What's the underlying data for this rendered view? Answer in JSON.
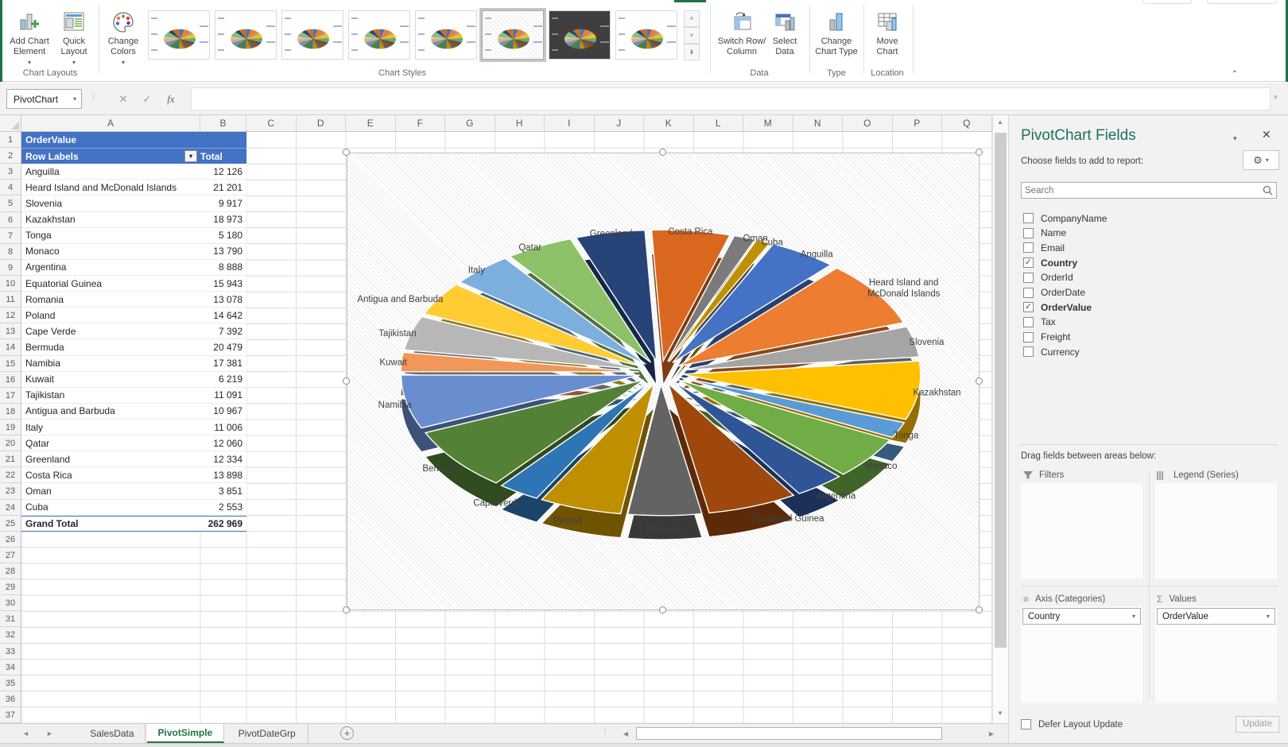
{
  "icons": {
    "cancel": "✕",
    "enter": "✓",
    "fx": "fx",
    "gear": "⚙",
    "dropdown": "▾",
    "up": "˄",
    "down": "˅",
    "more": "⇟",
    "left": "◄",
    "right": "►",
    "plus": "+",
    "sigma": "Σ",
    "lines": "≡",
    "bars": "⫿⫿⫿",
    "chevron-up": "⌃",
    "ellipsis": "⋮"
  },
  "ribbon": {
    "buttons": {
      "add_chart_element": "Add Chart\nElement",
      "quick_layout": "Quick\nLayout",
      "change_colors": "Change\nColors",
      "switch_row_column": "Switch Row/\nColumn",
      "select_data": "Select\nData",
      "change_chart_type": "Change\nChart Type",
      "move_chart": "Move\nChart"
    },
    "group_labels": {
      "chart_layouts": "Chart Layouts",
      "chart_styles": "Chart Styles",
      "data": "Data",
      "type": "Type",
      "location": "Location"
    },
    "gallery": {
      "selected_index": 5,
      "dark_index": 6,
      "count": 8
    }
  },
  "formula_bar": {
    "name_box": "PivotChart",
    "formula": ""
  },
  "grid": {
    "columns": [
      "A",
      "B",
      "C",
      "D",
      "E",
      "F",
      "G",
      "H",
      "I",
      "J",
      "K",
      "L",
      "M",
      "N",
      "O",
      "P",
      "Q"
    ],
    "row_count": 37,
    "pivot": {
      "title": "OrderValue",
      "row_labels_header": "Row Labels",
      "total_header": "Total",
      "rows": [
        {
          "country": "Anguilla",
          "value": "12 126"
        },
        {
          "country": "Heard Island and McDonald Islands",
          "value": "21 201"
        },
        {
          "country": "Slovenia",
          "value": "9 917"
        },
        {
          "country": "Kazakhstan",
          "value": "18 973"
        },
        {
          "country": "Tonga",
          "value": "5 180"
        },
        {
          "country": "Monaco",
          "value": "13 790"
        },
        {
          "country": "Argentina",
          "value": "8 888"
        },
        {
          "country": "Equatorial Guinea",
          "value": "15 943"
        },
        {
          "country": "Romania",
          "value": "13 078"
        },
        {
          "country": "Poland",
          "value": "14 642"
        },
        {
          "country": "Cape Verde",
          "value": "7 392"
        },
        {
          "country": "Bermuda",
          "value": "20 479"
        },
        {
          "country": "Namibia",
          "value": "17 381"
        },
        {
          "country": "Kuwait",
          "value": "6 219"
        },
        {
          "country": "Tajikistan",
          "value": "11 091"
        },
        {
          "country": "Antigua and Barbuda",
          "value": "10 967"
        },
        {
          "country": "Italy",
          "value": "11 006"
        },
        {
          "country": "Qatar",
          "value": "12 060"
        },
        {
          "country": "Greenland",
          "value": "12 334"
        },
        {
          "country": "Costa Rica",
          "value": "13 898"
        },
        {
          "country": "Oman",
          "value": "3 851"
        },
        {
          "country": "Cuba",
          "value": "2 553"
        }
      ],
      "grand_total": {
        "label": "Grand Total",
        "value": "262 969"
      }
    }
  },
  "chart_data": {
    "type": "pie",
    "style": "3d-exploded",
    "categories": [
      "Anguilla",
      "Heard Island and McDonald Islands",
      "Slovenia",
      "Kazakhstan",
      "Tonga",
      "Monaco",
      "Argentina",
      "Equatorial Guinea",
      "Romania",
      "Poland",
      "Cape Verde",
      "Bermuda",
      "Namibia",
      "Kuwait",
      "Tajikistan",
      "Antigua and Barbuda",
      "Italy",
      "Qatar",
      "Greenland",
      "Costa Rica",
      "Oman",
      "Cuba"
    ],
    "values": [
      12126,
      21201,
      9917,
      18973,
      5180,
      13790,
      8888,
      15943,
      13078,
      14642,
      7392,
      20479,
      17381,
      6219,
      11091,
      10967,
      11006,
      12060,
      12334,
      13898,
      3851,
      2553
    ],
    "total": 262969,
    "series_name": "Total",
    "category_field": "Country",
    "value_field": "OrderValue",
    "start_angle_deg": -65,
    "colors": [
      "#4472C4",
      "#ED7D31",
      "#A5A5A5",
      "#FFC000",
      "#5B9BD5",
      "#70AD47",
      "#2F5597",
      "#9E480E",
      "#636363",
      "#BF8F00",
      "#2E75B6",
      "#538135",
      "#698ED0",
      "#F1975A",
      "#B7B7B7",
      "#FFCD33",
      "#7CAFDD",
      "#8CC168",
      "#264478",
      "#D9681E",
      "#7B7B7B",
      "#BF9000"
    ],
    "label_color": "#404040",
    "legend": "none"
  },
  "fields_pane": {
    "title": "PivotChart Fields",
    "choose_label": "Choose fields to add to report:",
    "search_placeholder": "Search",
    "fields": [
      {
        "label": "CompanyName",
        "checked": false
      },
      {
        "label": "Name",
        "checked": false
      },
      {
        "label": "Email",
        "checked": false
      },
      {
        "label": "Country",
        "checked": true
      },
      {
        "label": "OrderId",
        "checked": false
      },
      {
        "label": "OrderDate",
        "checked": false
      },
      {
        "label": "OrderValue",
        "checked": true
      },
      {
        "label": "Tax",
        "checked": false
      },
      {
        "label": "Freight",
        "checked": false
      },
      {
        "label": "Currency",
        "checked": false
      }
    ],
    "drag_label": "Drag fields between areas below:",
    "areas": {
      "filters": {
        "label": "Filters",
        "items": []
      },
      "legend": {
        "label": "Legend (Series)",
        "items": []
      },
      "axis": {
        "label": "Axis (Categories)",
        "items": [
          "Country"
        ]
      },
      "values": {
        "label": "Values",
        "items": [
          "OrderValue"
        ]
      }
    },
    "defer_label": "Defer Layout Update",
    "update_label": "Update"
  },
  "sheet_tabs": {
    "tabs": [
      {
        "label": "SalesData",
        "active": false
      },
      {
        "label": "PivotSimple",
        "active": true
      },
      {
        "label": "PivotDateGrp",
        "active": false
      }
    ]
  },
  "accent_colors": {
    "excel_green": "#217346",
    "pivot_header_blue": "#4472C4"
  }
}
